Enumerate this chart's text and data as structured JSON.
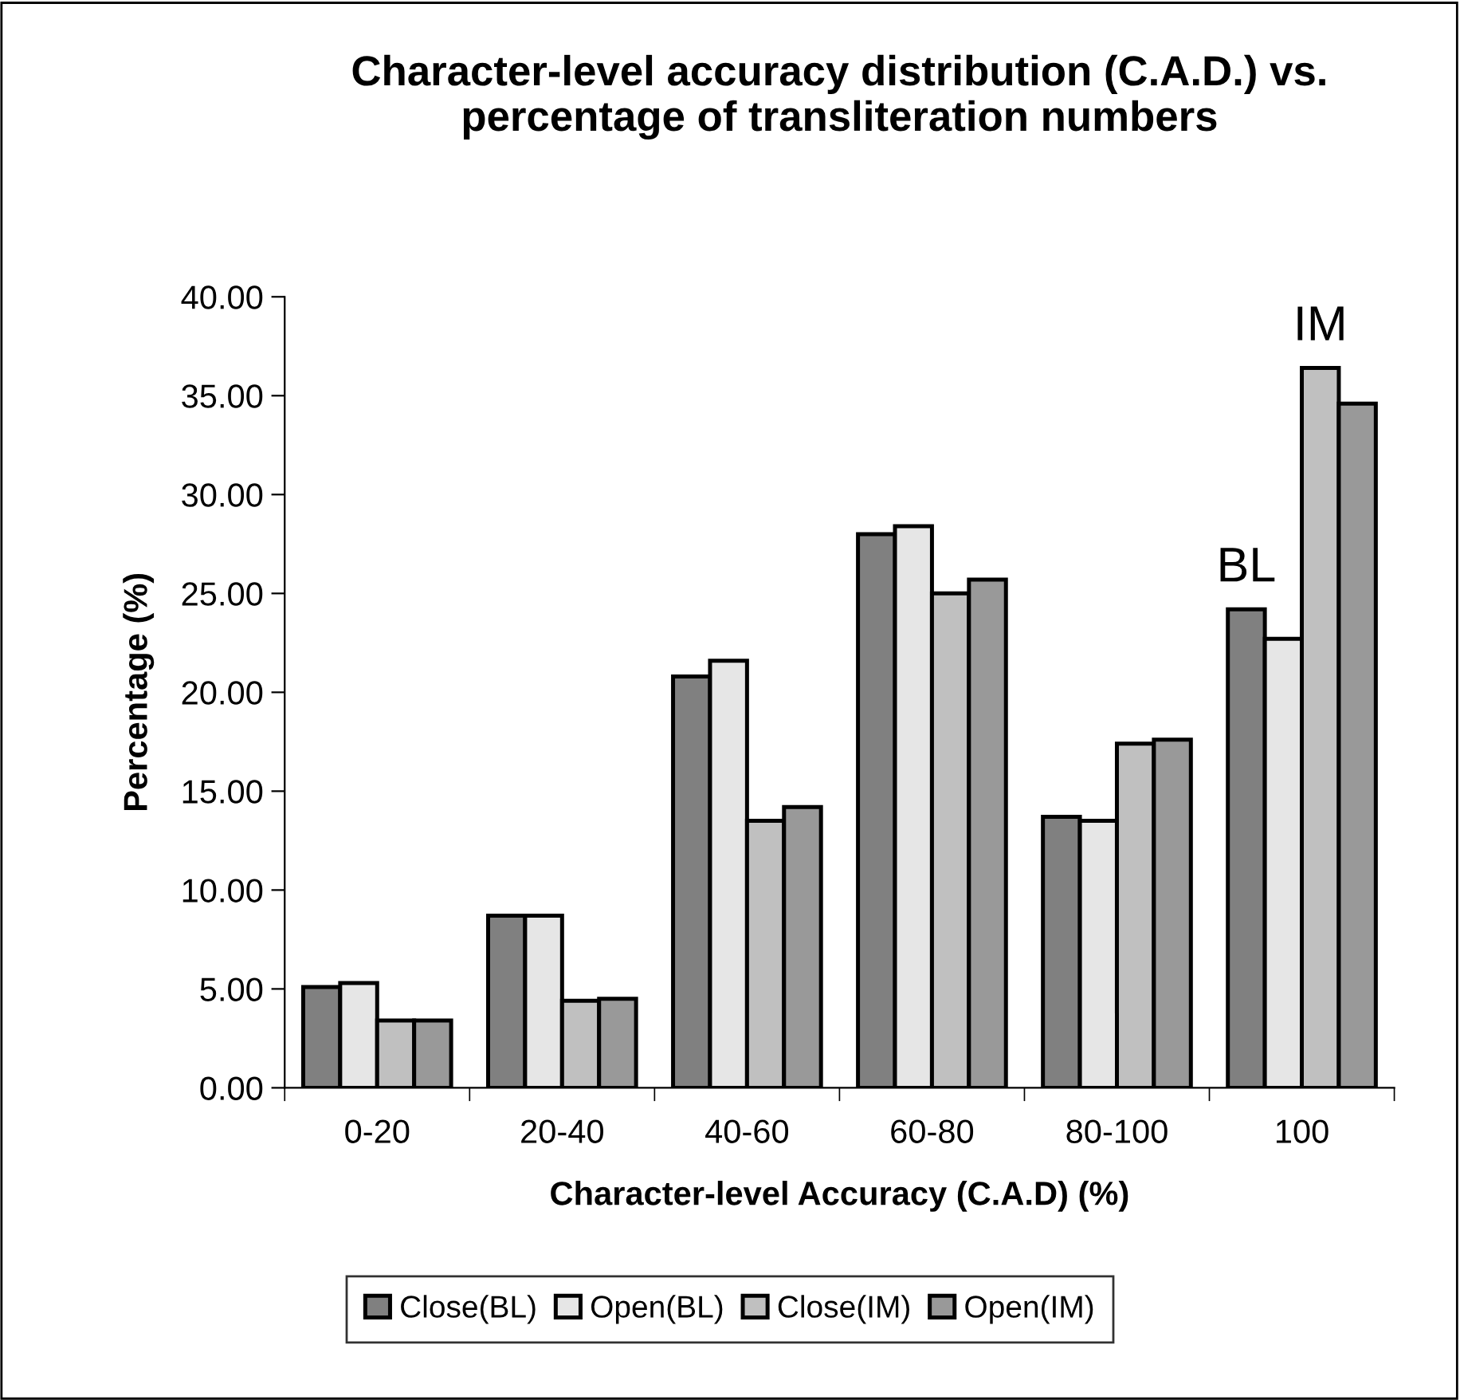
{
  "chart_data": {
    "type": "bar",
    "title": "Character-level accuracy distribution (C.A.D.) vs.\npercentage of transliteration numbers",
    "xlabel": "Character-level Accuracy (C.A.D) (%)",
    "ylabel": "Percentage (%)",
    "categories": [
      "0-20",
      "20-40",
      "40-60",
      "60-80",
      "80-100",
      "100"
    ],
    "series": [
      {
        "name": "Close(BL)",
        "color": "#808080",
        "values": [
          5.1,
          8.7,
          20.8,
          28.0,
          13.7,
          24.2
        ]
      },
      {
        "name": "Open(BL)",
        "color": "#e6e6e6",
        "values": [
          5.3,
          8.7,
          21.6,
          28.4,
          13.5,
          22.7
        ]
      },
      {
        "name": "Close(IM)",
        "color": "#c0c0c0",
        "values": [
          3.4,
          4.4,
          13.5,
          25.0,
          17.4,
          36.4
        ]
      },
      {
        "name": "Open(IM)",
        "color": "#999999",
        "values": [
          3.4,
          4.5,
          14.2,
          25.7,
          17.6,
          34.6
        ]
      }
    ],
    "annotations": [
      {
        "text": "BL",
        "x": "100",
        "y": 24.2
      },
      {
        "text": "IM",
        "x": "100",
        "y": 36.4
      }
    ],
    "ylim": [
      0,
      40
    ],
    "yticks": [
      {
        "value": 0,
        "label": "0.00"
      },
      {
        "value": 5,
        "label": "5.00"
      },
      {
        "value": 10,
        "label": "10.00"
      },
      {
        "value": 15,
        "label": "15.00"
      },
      {
        "value": 20,
        "label": "20.00"
      },
      {
        "value": 25,
        "label": "25.00"
      },
      {
        "value": 30,
        "label": "30.00"
      },
      {
        "value": 35,
        "label": "35.00"
      },
      {
        "value": 40,
        "label": "40.00"
      }
    ],
    "grid": false,
    "legend": "bottom"
  }
}
